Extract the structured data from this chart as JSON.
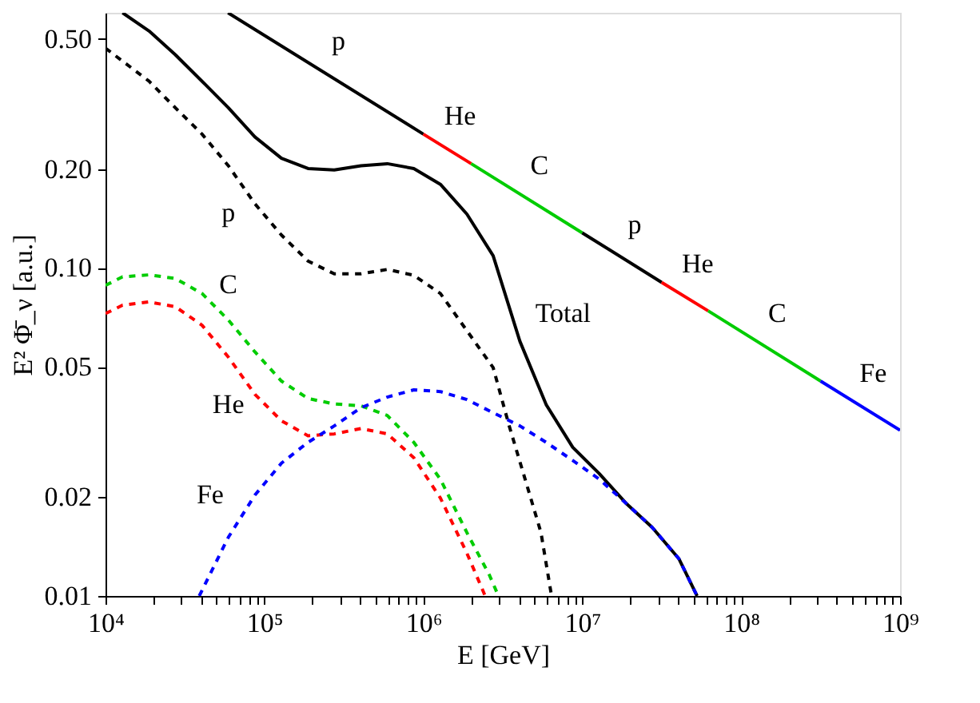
{
  "chart_data": {
    "type": "line",
    "xlabel": "E [GeV]",
    "ylabel": "E² Φ̄_ν [a.u.]",
    "log": "xy",
    "grid": false,
    "marker": "none",
    "xlim": [
      10000,
      1000000000
    ],
    "ylim": [
      0.01,
      0.6
    ],
    "xticks": [
      {
        "value": 10000,
        "label": "10⁴"
      },
      {
        "value": 20000,
        "label": null
      },
      {
        "value": 30000,
        "label": null
      },
      {
        "value": 40000,
        "label": null
      },
      {
        "value": 50000,
        "label": null
      },
      {
        "value": 60000,
        "label": null
      },
      {
        "value": 70000,
        "label": null
      },
      {
        "value": 80000,
        "label": null
      },
      {
        "value": 90000,
        "label": null
      },
      {
        "value": 100000,
        "label": "10⁵"
      },
      {
        "value": 200000,
        "label": null
      },
      {
        "value": 300000,
        "label": null
      },
      {
        "value": 400000,
        "label": null
      },
      {
        "value": 500000,
        "label": null
      },
      {
        "value": 600000,
        "label": null
      },
      {
        "value": 700000,
        "label": null
      },
      {
        "value": 800000,
        "label": null
      },
      {
        "value": 900000,
        "label": null
      },
      {
        "value": 1000000,
        "label": "10⁶"
      },
      {
        "value": 2000000,
        "label": null
      },
      {
        "value": 3000000,
        "label": null
      },
      {
        "value": 4000000,
        "label": null
      },
      {
        "value": 5000000,
        "label": null
      },
      {
        "value": 6000000,
        "label": null
      },
      {
        "value": 7000000,
        "label": null
      },
      {
        "value": 8000000,
        "label": null
      },
      {
        "value": 9000000,
        "label": null
      },
      {
        "value": 10000000,
        "label": "10⁷"
      },
      {
        "value": 20000000,
        "label": null
      },
      {
        "value": 30000000,
        "label": null
      },
      {
        "value": 40000000,
        "label": null
      },
      {
        "value": 50000000,
        "label": null
      },
      {
        "value": 60000000,
        "label": null
      },
      {
        "value": 70000000,
        "label": null
      },
      {
        "value": 80000000,
        "label": null
      },
      {
        "value": 90000000,
        "label": null
      },
      {
        "value": 100000000,
        "label": "10⁸"
      },
      {
        "value": 200000000,
        "label": null
      },
      {
        "value": 300000000,
        "label": null
      },
      {
        "value": 400000000,
        "label": null
      },
      {
        "value": 500000000,
        "label": null
      },
      {
        "value": 600000000,
        "label": null
      },
      {
        "value": 700000000,
        "label": null
      },
      {
        "value": 800000000,
        "label": null
      },
      {
        "value": 900000000,
        "label": null
      },
      {
        "value": 1000000000,
        "label": "10⁹"
      }
    ],
    "yticks": [
      0.01,
      0.02,
      0.05,
      {
        "value": 0.1,
        "label": "0.10"
      },
      {
        "value": 0.2,
        "label": "0.20"
      },
      {
        "value": 0.5,
        "label": "0.50"
      }
    ],
    "series": [
      {
        "name": "Total",
        "color": "#000000",
        "line_style": "solid",
        "x": [
          12800,
          18800,
          27500,
          40500,
          59300,
          87100,
          128000,
          188000,
          275000,
          405000,
          593000,
          871000,
          1280000,
          1880000,
          2750000,
          4050000,
          5930000,
          8710000,
          12800000,
          18800000,
          27500000,
          40500000,
          52800000
        ],
        "values": [
          0.6,
          0.528,
          0.447,
          0.371,
          0.308,
          0.251,
          0.216,
          0.201,
          0.199,
          0.205,
          0.208,
          0.201,
          0.18,
          0.146,
          0.109,
          0.0598,
          0.0383,
          0.0284,
          0.0236,
          0.0192,
          0.0162,
          0.013,
          0.01
        ]
      },
      {
        "name": "p",
        "color": "#000000",
        "line_style": "dashed",
        "x": [
          10000,
          18800,
          27500,
          40500,
          59300,
          87100,
          128000,
          188000,
          275000,
          405000,
          593000,
          871000,
          1280000,
          1880000,
          2750000,
          3470000,
          4370000,
          5500000,
          6410000
        ],
        "values": [
          0.468,
          0.371,
          0.308,
          0.256,
          0.205,
          0.157,
          0.126,
          0.105,
          0.096,
          0.096,
          0.099,
          0.095,
          0.0836,
          0.0644,
          0.0497,
          0.033,
          0.0227,
          0.0156,
          0.01
        ]
      },
      {
        "name": "C",
        "color": "#00cc00",
        "line_style": "dashed",
        "x": [
          10000,
          12800,
          18800,
          27500,
          40500,
          59300,
          87100,
          128000,
          188000,
          275000,
          405000,
          593000,
          871000,
          1280000,
          1880000,
          2600000,
          2970000
        ],
        "values": [
          0.0885,
          0.094,
          0.0953,
          0.0929,
          0.0836,
          0.0694,
          0.0555,
          0.0452,
          0.04,
          0.0385,
          0.038,
          0.0355,
          0.0294,
          0.0227,
          0.0156,
          0.0116,
          0.01
        ]
      },
      {
        "name": "He",
        "color": "#ff0000",
        "line_style": "dashed",
        "x": [
          10000,
          12800,
          18800,
          27500,
          40500,
          59300,
          87100,
          128000,
          188000,
          275000,
          405000,
          593000,
          871000,
          1280000,
          1880000,
          2450000
        ],
        "values": [
          0.0726,
          0.077,
          0.0788,
          0.0762,
          0.0669,
          0.0535,
          0.0412,
          0.0342,
          0.0308,
          0.0312,
          0.0324,
          0.0312,
          0.0264,
          0.0199,
          0.0135,
          0.01
        ]
      },
      {
        "name": "Fe",
        "color": "#0000ff",
        "line_style": "dashed",
        "x": [
          38900,
          59300,
          87100,
          128000,
          188000,
          275000,
          405000,
          593000,
          871000,
          1280000,
          1880000,
          2750000,
          4050000,
          5930000,
          8710000,
          12800000,
          18800000,
          27500000,
          40500000,
          52800000
        ],
        "values": [
          0.01,
          0.0151,
          0.0203,
          0.0254,
          0.0294,
          0.033,
          0.0375,
          0.0404,
          0.0425,
          0.042,
          0.0397,
          0.0362,
          0.033,
          0.0294,
          0.0259,
          0.0227,
          0.0192,
          0.0162,
          0.013,
          0.01
        ]
      },
      {
        "name": "p",
        "color": "#000000",
        "line_style": "solid",
        "x": [
          59000,
          1000000
        ],
        "values": [
          0.6,
          0.256
        ]
      },
      {
        "name": "He",
        "color": "#ff0000",
        "line_style": "solid",
        "x": [
          1000000,
          2000000
        ],
        "values": [
          0.256,
          0.208
        ]
      },
      {
        "name": "C",
        "color": "#00cc00",
        "line_style": "solid",
        "x": [
          2000000,
          10000000
        ],
        "values": [
          0.208,
          0.128
        ]
      },
      {
        "name": "p",
        "color": "#000000",
        "line_style": "solid",
        "x": [
          10000000,
          31600000
        ],
        "values": [
          0.128,
          0.0904
        ]
      },
      {
        "name": "He",
        "color": "#ff0000",
        "line_style": "solid",
        "x": [
          31600000,
          62000000
        ],
        "values": [
          0.0904,
          0.074
        ]
      },
      {
        "name": "C",
        "color": "#00cc00",
        "line_style": "solid",
        "x": [
          62000000,
          316000000
        ],
        "values": [
          0.074,
          0.0452
        ]
      },
      {
        "name": "Fe",
        "color": "#0000ff",
        "line_style": "solid",
        "x": [
          316000000,
          1000000000
        ],
        "values": [
          0.0452,
          0.032
        ]
      }
    ]
  }
}
